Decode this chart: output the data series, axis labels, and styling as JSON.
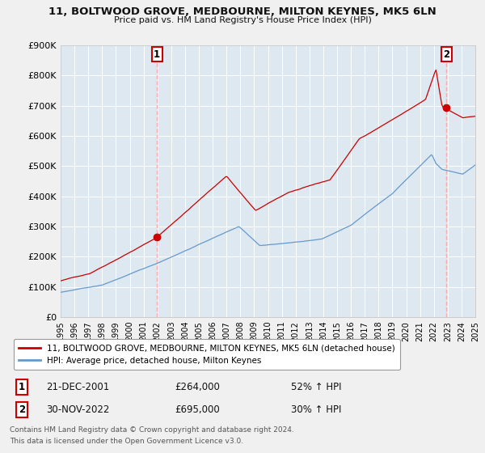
{
  "title": "11, BOLTWOOD GROVE, MEDBOURNE, MILTON KEYNES, MK5 6LN",
  "subtitle": "Price paid vs. HM Land Registry's House Price Index (HPI)",
  "x_start_year": 1995,
  "x_end_year": 2025,
  "ylim": [
    0,
    900000
  ],
  "yticks": [
    0,
    100000,
    200000,
    300000,
    400000,
    500000,
    600000,
    700000,
    800000,
    900000
  ],
  "ytick_labels": [
    "£0",
    "£100K",
    "£200K",
    "£300K",
    "£400K",
    "£500K",
    "£600K",
    "£700K",
    "£800K",
    "£900K"
  ],
  "red_line_color": "#cc0000",
  "blue_line_color": "#6699cc",
  "bg_color": "#dde8f0",
  "grid_color": "#ffffff",
  "fig_bg_color": "#f0f0f0",
  "marker1_year": 2001.97,
  "marker1_value": 264000,
  "marker2_year": 2022.92,
  "marker2_value": 695000,
  "vline1_year": 2001.97,
  "vline2_year": 2022.92,
  "vline_color": "#ffaaaa",
  "legend_line1": "11, BOLTWOOD GROVE, MEDBOURNE, MILTON KEYNES, MK5 6LN (detached house)",
  "legend_line2": "HPI: Average price, detached house, Milton Keynes",
  "annotation1_num": "1",
  "annotation1_date": "21-DEC-2001",
  "annotation1_price": "£264,000",
  "annotation1_hpi": "52% ↑ HPI",
  "annotation2_num": "2",
  "annotation2_date": "30-NOV-2022",
  "annotation2_price": "£695,000",
  "annotation2_hpi": "30% ↑ HPI",
  "footnote_line1": "Contains HM Land Registry data © Crown copyright and database right 2024.",
  "footnote_line2": "This data is licensed under the Open Government Licence v3.0.",
  "red_waypoints_t": [
    0,
    0.07,
    0.23,
    0.4,
    0.47,
    0.55,
    0.65,
    0.72,
    0.8,
    0.88,
    0.905,
    0.92,
    0.97,
    1.0
  ],
  "red_waypoints_v": [
    120000,
    145000,
    264000,
    470000,
    355000,
    415000,
    455000,
    590000,
    655000,
    720000,
    820000,
    695000,
    660000,
    665000
  ],
  "blue_waypoints_t": [
    0,
    0.1,
    0.23,
    0.43,
    0.48,
    0.57,
    0.63,
    0.7,
    0.8,
    0.895,
    0.905,
    0.92,
    0.97,
    1.0
  ],
  "blue_waypoints_v": [
    82000,
    105000,
    175000,
    300000,
    238000,
    250000,
    260000,
    305000,
    410000,
    540000,
    510000,
    490000,
    475000,
    505000
  ]
}
